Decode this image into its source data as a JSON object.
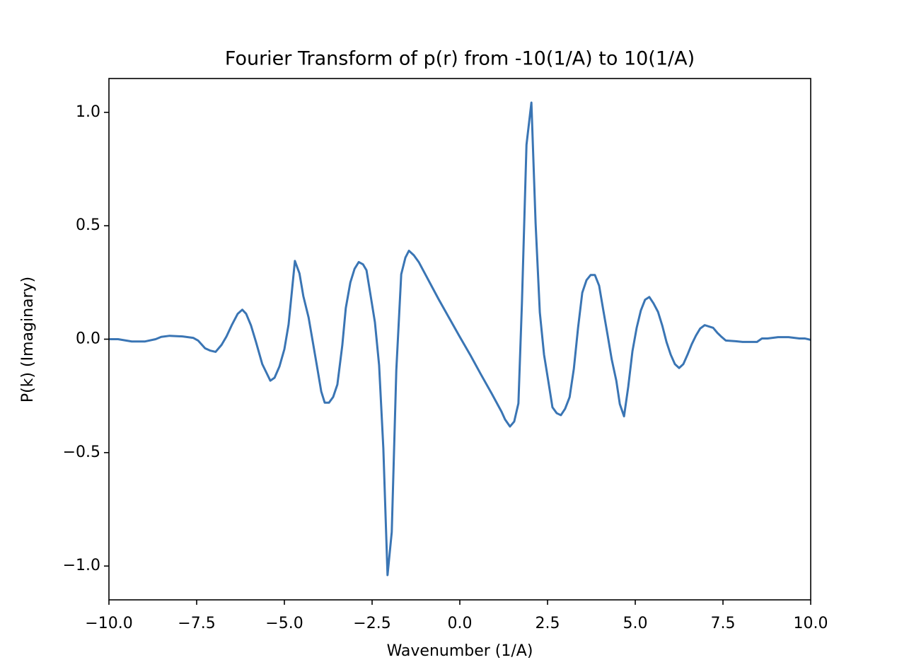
{
  "chart_data": {
    "type": "line",
    "title": "Fourier Transform of p(r) from -10(1/A) to 10(1/A)",
    "xlabel": "Wavenumber (1/A)",
    "ylabel": "P(k) (Imaginary)",
    "color": "#3a75b4",
    "x": [
      -10,
      -9.74,
      -9.35,
      -8.97,
      -8.67,
      -8.51,
      -8.27,
      -7.9,
      -7.6,
      -7.46,
      -7.26,
      -7.12,
      -6.96,
      -6.79,
      -6.65,
      -6.49,
      -6.33,
      -6.2,
      -6.09,
      -5.95,
      -5.81,
      -5.63,
      -5.4,
      -5.28,
      -5.14,
      -5.0,
      -4.88,
      -4.78,
      -4.7,
      -4.57,
      -4.46,
      -4.31,
      -4.19,
      -4.07,
      -3.95,
      -3.85,
      -3.73,
      -3.61,
      -3.49,
      -3.35,
      -3.25,
      -3.12,
      -3.0,
      -2.88,
      -2.76,
      -2.66,
      -2.54,
      -2.42,
      -2.3,
      -2.18,
      -2.06,
      -1.94,
      -1.81,
      -1.67,
      -1.55,
      -1.45,
      -1.31,
      -1.17,
      -0.98,
      -0.79,
      -0.6,
      -0.4,
      -0.2,
      0.0,
      0.3,
      0.6,
      0.91,
      1.19,
      1.29,
      1.43,
      1.55,
      1.67,
      1.77,
      1.9,
      2.04,
      2.16,
      2.28,
      2.4,
      2.52,
      2.64,
      2.76,
      2.88,
      3.0,
      3.13,
      3.25,
      3.37,
      3.49,
      3.61,
      3.73,
      3.85,
      3.97,
      4.09,
      4.21,
      4.33,
      4.46,
      4.56,
      4.68,
      4.8,
      4.92,
      5.04,
      5.16,
      5.28,
      5.4,
      5.52,
      5.65,
      5.77,
      5.89,
      6.01,
      6.13,
      6.25,
      6.37,
      6.49,
      6.61,
      6.73,
      6.85,
      6.98,
      7.1,
      7.22,
      7.34,
      7.46,
      7.58,
      7.86,
      8.06,
      8.47,
      8.61,
      8.77,
      9.07,
      9.37,
      9.68,
      9.84,
      10
    ],
    "values": [
      0,
      0,
      -0.01,
      -0.01,
      0,
      0.01,
      0.015,
      0.012,
      0.006,
      -0.006,
      -0.04,
      -0.05,
      -0.056,
      -0.025,
      0.012,
      0.065,
      0.112,
      0.13,
      0.112,
      0.06,
      -0.012,
      -0.11,
      -0.183,
      -0.17,
      -0.12,
      -0.044,
      0.065,
      0.22,
      0.345,
      0.29,
      0.19,
      0.096,
      -0.012,
      -0.12,
      -0.23,
      -0.28,
      -0.28,
      -0.255,
      -0.2,
      -0.028,
      0.137,
      0.25,
      0.31,
      0.34,
      0.33,
      0.304,
      0.19,
      0.075,
      -0.115,
      -0.48,
      -1.04,
      -0.85,
      -0.137,
      0.286,
      0.36,
      0.39,
      0.37,
      0.34,
      0.285,
      0.23,
      0.175,
      0.12,
      0.065,
      0.01,
      -0.07,
      -0.155,
      -0.24,
      -0.32,
      -0.354,
      -0.385,
      -0.363,
      -0.283,
      0.158,
      0.857,
      1.043,
      0.51,
      0.118,
      -0.068,
      -0.183,
      -0.3,
      -0.326,
      -0.335,
      -0.307,
      -0.255,
      -0.13,
      0.05,
      0.205,
      0.26,
      0.283,
      0.283,
      0.236,
      0.127,
      0.02,
      -0.09,
      -0.183,
      -0.286,
      -0.34,
      -0.21,
      -0.053,
      0.05,
      0.127,
      0.174,
      0.186,
      0.158,
      0.12,
      0.06,
      -0.012,
      -0.068,
      -0.11,
      -0.127,
      -0.11,
      -0.068,
      -0.022,
      0.016,
      0.047,
      0.062,
      0.056,
      0.05,
      0.028,
      0.01,
      -0.006,
      -0.009,
      -0.012,
      -0.012,
      0.003,
      0.003,
      0.009,
      0.009,
      0.003,
      0.003,
      -0.003
    ],
    "xlim": [
      -10,
      10
    ],
    "ylim": [
      -1.149,
      1.149
    ],
    "xticks": [
      {
        "value": -10,
        "label": "−10.0"
      },
      {
        "value": -7.5,
        "label": "−7.5"
      },
      {
        "value": -5,
        "label": "−5.0"
      },
      {
        "value": -2.5,
        "label": "−2.5"
      },
      {
        "value": 0,
        "label": "0.0"
      },
      {
        "value": 2.5,
        "label": "2.5"
      },
      {
        "value": 5,
        "label": "5.0"
      },
      {
        "value": 7.5,
        "label": "7.5"
      },
      {
        "value": 10,
        "label": "10.0"
      }
    ],
    "yticks": [
      {
        "value": -1,
        "label": "−1.0"
      },
      {
        "value": -0.5,
        "label": "−0.5"
      },
      {
        "value": 0,
        "label": "0.0"
      },
      {
        "value": 0.5,
        "label": "0.5"
      },
      {
        "value": 1,
        "label": "1.0"
      }
    ],
    "grid": false
  }
}
